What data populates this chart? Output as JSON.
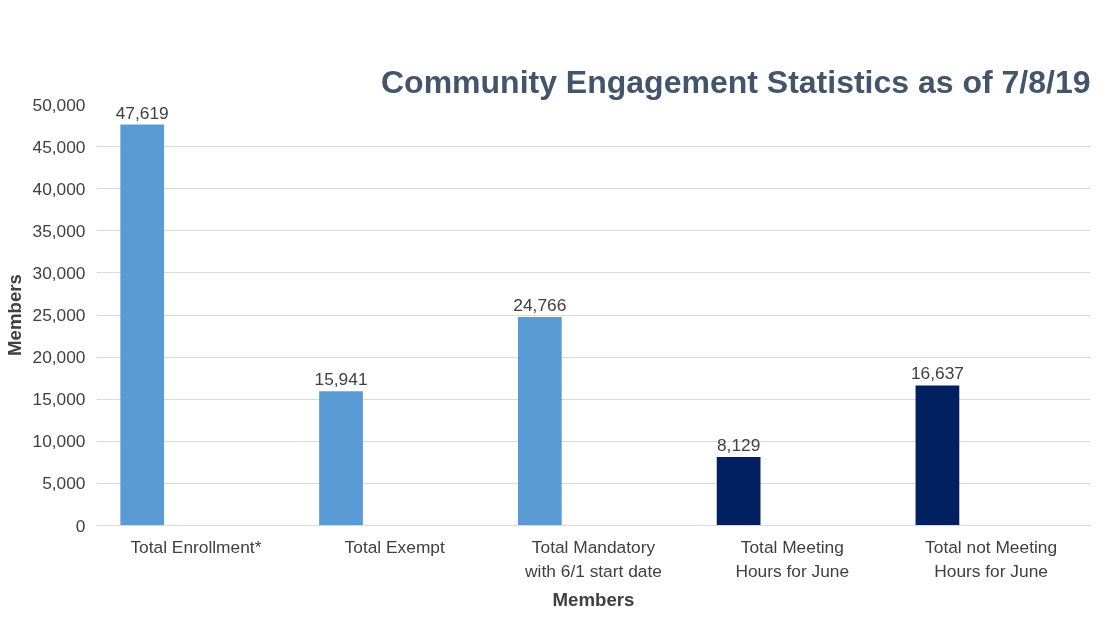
{
  "chart_data": {
    "type": "bar",
    "title": "Community Engagement Statistics as of 7/8/19",
    "xlabel": "Members",
    "ylabel": "Members",
    "categories": [
      "Total Enrollment*",
      "Total Exempt",
      "Total Mandatory\nwith 6/1 start date",
      "Total Meeting\nHours for June",
      "Total not Meeting\nHours for June"
    ],
    "values": [
      47619,
      15941,
      24766,
      8129,
      16637
    ],
    "colors": [
      "#5b9bd5",
      "#5b9bd5",
      "#5b9bd5",
      "#002060",
      "#002060"
    ],
    "ylim": [
      0,
      50000
    ],
    "yticks": [
      {
        "value": 0,
        "label": "0"
      },
      {
        "value": 5000,
        "label": "5,000"
      },
      {
        "value": 10000,
        "label": "10,000"
      },
      {
        "value": 15000,
        "label": "15,000"
      },
      {
        "value": 20000,
        "label": "20,000"
      },
      {
        "value": 25000,
        "label": "25,000"
      },
      {
        "value": 30000,
        "label": "30,000"
      },
      {
        "value": 35000,
        "label": "35,000"
      },
      {
        "value": 40000,
        "label": "40,000"
      },
      {
        "value": 45000,
        "label": "45,000"
      },
      {
        "value": 50000,
        "label": "50,000"
      }
    ],
    "grid": "y",
    "value_labels": [
      "47,619",
      "15,941",
      "24,766",
      "8,129",
      "16,637"
    ]
  }
}
